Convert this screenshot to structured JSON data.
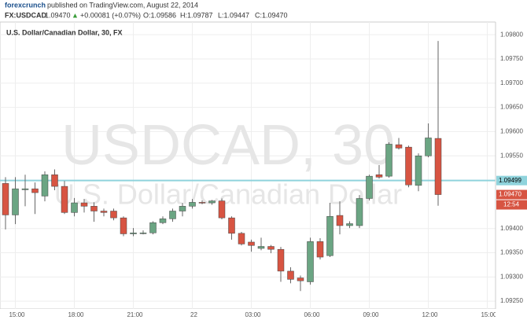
{
  "header": {
    "brand": "forexcrunch",
    "published": "published on TradingView.com, August 22, 2014",
    "symbol": "FX:USDCAD",
    "last": "1.09470",
    "arrow": "▲",
    "change": "+0.00081 (+0.07%)",
    "open": "O:1.09586",
    "high": "H:1.09787",
    "low": "L:1.09447",
    "close": "C:1.09470"
  },
  "chart_data": {
    "type": "candlestick",
    "title": "U.S. Dollar/Canadian Dollar, 30, FX",
    "watermark": "USDCAD, 30",
    "watermark_subtitle": "U.S. Dollar/Canadian Dollar",
    "categories": [
      null,
      "15:00",
      null,
      null,
      null,
      null,
      null,
      "18:00",
      null,
      null,
      null,
      null,
      null,
      "21:00",
      null,
      null,
      null,
      null,
      null,
      "22",
      null,
      null,
      null,
      null,
      null,
      "03:00",
      null,
      null,
      null,
      null,
      null,
      "06:00",
      null,
      null,
      null,
      null,
      null,
      "09:00",
      null,
      null,
      null,
      null,
      null,
      "12:00",
      null,
      null,
      null,
      null,
      null,
      "15:00"
    ],
    "open": [
      1.09493,
      1.09428,
      1.0948,
      1.09482,
      1.09467,
      1.09511,
      1.09487,
      1.09433,
      1.09453,
      1.09446,
      1.09436,
      1.09436,
      1.09422,
      1.09389,
      1.09391,
      1.09391,
      1.09412,
      1.0942,
      1.09436,
      1.09446,
      1.09454,
      1.09453,
      1.09457,
      1.09422,
      1.0939,
      1.09372,
      1.09359,
      1.09363,
      1.09357,
      1.09312,
      1.09298,
      1.0929,
      1.09373,
      1.09344,
      1.09427,
      1.09406,
      1.09406,
      1.09462,
      1.09511,
      1.09508,
      1.09573,
      1.09568,
      1.09489,
      1.0955,
      1.09586,
      null,
      null,
      null,
      null,
      null
    ],
    "high": [
      1.09506,
      1.09506,
      1.09511,
      1.09495,
      1.09518,
      1.09522,
      1.09498,
      1.09463,
      1.09461,
      1.09454,
      1.09441,
      1.09441,
      1.09425,
      1.09401,
      1.09396,
      1.09415,
      1.09425,
      1.09441,
      1.09453,
      1.09461,
      1.09458,
      1.09459,
      1.09462,
      1.09425,
      1.09393,
      1.09377,
      1.09381,
      1.09366,
      1.09362,
      1.0932,
      1.09303,
      1.09381,
      1.0938,
      1.09453,
      1.09456,
      1.09415,
      1.09469,
      1.09511,
      1.09531,
      1.09578,
      1.09587,
      1.09571,
      1.09555,
      1.09617,
      1.09787,
      null,
      null,
      null,
      null,
      null
    ],
    "low": [
      1.09398,
      1.09409,
      1.09446,
      1.0943,
      1.09456,
      1.09479,
      1.0943,
      1.09425,
      1.09433,
      1.09414,
      1.09425,
      1.09417,
      1.09384,
      1.09384,
      1.09388,
      1.09388,
      1.09409,
      1.09414,
      1.09425,
      1.09441,
      1.0945,
      1.09449,
      1.09419,
      1.09377,
      1.09365,
      1.09352,
      1.09355,
      1.09349,
      1.0929,
      1.09287,
      1.09271,
      1.09284,
      1.09336,
      1.09341,
      1.09388,
      1.09401,
      1.09401,
      1.09458,
      1.09503,
      1.09505,
      1.09563,
      1.09485,
      1.09477,
      1.09547,
      1.09447,
      null,
      null,
      null,
      null,
      null
    ],
    "close": [
      1.09428,
      1.09482,
      1.09482,
      1.09474,
      1.09511,
      1.09487,
      1.09433,
      1.09453,
      1.09446,
      1.09436,
      1.09433,
      1.09422,
      1.09389,
      1.09391,
      1.09391,
      1.09412,
      1.0942,
      1.09436,
      1.09446,
      1.09454,
      1.09453,
      1.09457,
      1.09422,
      1.0939,
      1.09368,
      1.09365,
      1.09363,
      1.09357,
      1.09312,
      1.09295,
      1.09292,
      1.09373,
      1.09341,
      1.09425,
      1.09406,
      1.0941,
      1.09462,
      1.09508,
      1.09506,
      1.09574,
      1.09566,
      1.0949,
      1.0955,
      1.09587,
      1.0947,
      null,
      null,
      null,
      null,
      null
    ],
    "up_color": "#6ba583",
    "down_color": "#d75442",
    "ylim": [
      1.09234,
      1.09823
    ],
    "yticks": [
      {
        "value": 1.0925,
        "label": "1.09250"
      },
      {
        "value": 1.093,
        "label": "1.09300"
      },
      {
        "value": 1.0935,
        "label": "1.09350"
      },
      {
        "value": 1.094,
        "label": "1.09400"
      },
      {
        "value": 1.0955,
        "label": "1.09550"
      },
      {
        "value": 1.096,
        "label": "1.09600"
      },
      {
        "value": 1.0965,
        "label": "1.09650"
      },
      {
        "value": 1.097,
        "label": "1.09700"
      },
      {
        "value": 1.0975,
        "label": "1.09750"
      },
      {
        "value": 1.098,
        "label": "1.09800"
      }
    ],
    "grid": true,
    "hline": {
      "value": 1.09499,
      "label": "1.09499",
      "color": "#8fd3dc"
    },
    "last_price": {
      "value": 1.0947,
      "label": "1.09470"
    },
    "countdown": "12:54"
  }
}
